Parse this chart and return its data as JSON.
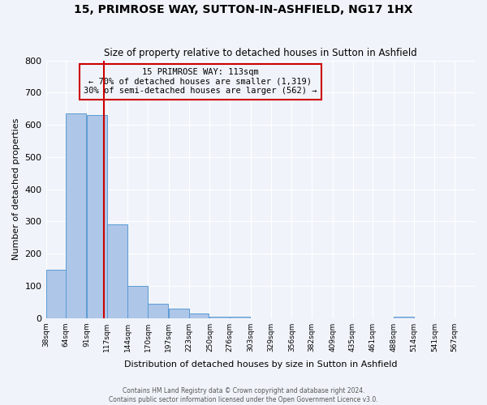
{
  "title": "15, PRIMROSE WAY, SUTTON-IN-ASHFIELD, NG17 1HX",
  "subtitle": "Size of property relative to detached houses in Sutton in Ashfield",
  "xlabel": "Distribution of detached houses by size in Sutton in Ashfield",
  "ylabel": "Number of detached properties",
  "bar_values": [
    150,
    635,
    630,
    290,
    100,
    45,
    30,
    15,
    5,
    5,
    0,
    0,
    0,
    0,
    0,
    0,
    0,
    5,
    0,
    0
  ],
  "bin_labels": [
    "38sqm",
    "64sqm",
    "91sqm",
    "117sqm",
    "144sqm",
    "170sqm",
    "197sqm",
    "223sqm",
    "250sqm",
    "276sqm",
    "303sqm",
    "329sqm",
    "356sqm",
    "382sqm",
    "409sqm",
    "435sqm",
    "461sqm",
    "488sqm",
    "514sqm",
    "541sqm",
    "567sqm"
  ],
  "bin_edges": [
    38,
    64,
    91,
    117,
    144,
    170,
    197,
    223,
    250,
    276,
    303,
    329,
    356,
    382,
    409,
    435,
    461,
    488,
    514,
    541,
    567
  ],
  "property_size": 113,
  "bar_color": "#aec6e8",
  "bar_edge_color": "#5b9bd5",
  "vline_color": "#cc0000",
  "vline_x": 113,
  "annotation_box_text": "15 PRIMROSE WAY: 113sqm\n← 70% of detached houses are smaller (1,319)\n30% of semi-detached houses are larger (562) →",
  "annotation_box_color": "#cc0000",
  "ylim": [
    0,
    800
  ],
  "yticks": [
    0,
    100,
    200,
    300,
    400,
    500,
    600,
    700,
    800
  ],
  "background_color": "#f0f4fa",
  "grid_color": "#ffffff",
  "footer_line1": "Contains HM Land Registry data © Crown copyright and database right 2024.",
  "footer_line2": "Contains public sector information licensed under the Open Government Licence v3.0."
}
